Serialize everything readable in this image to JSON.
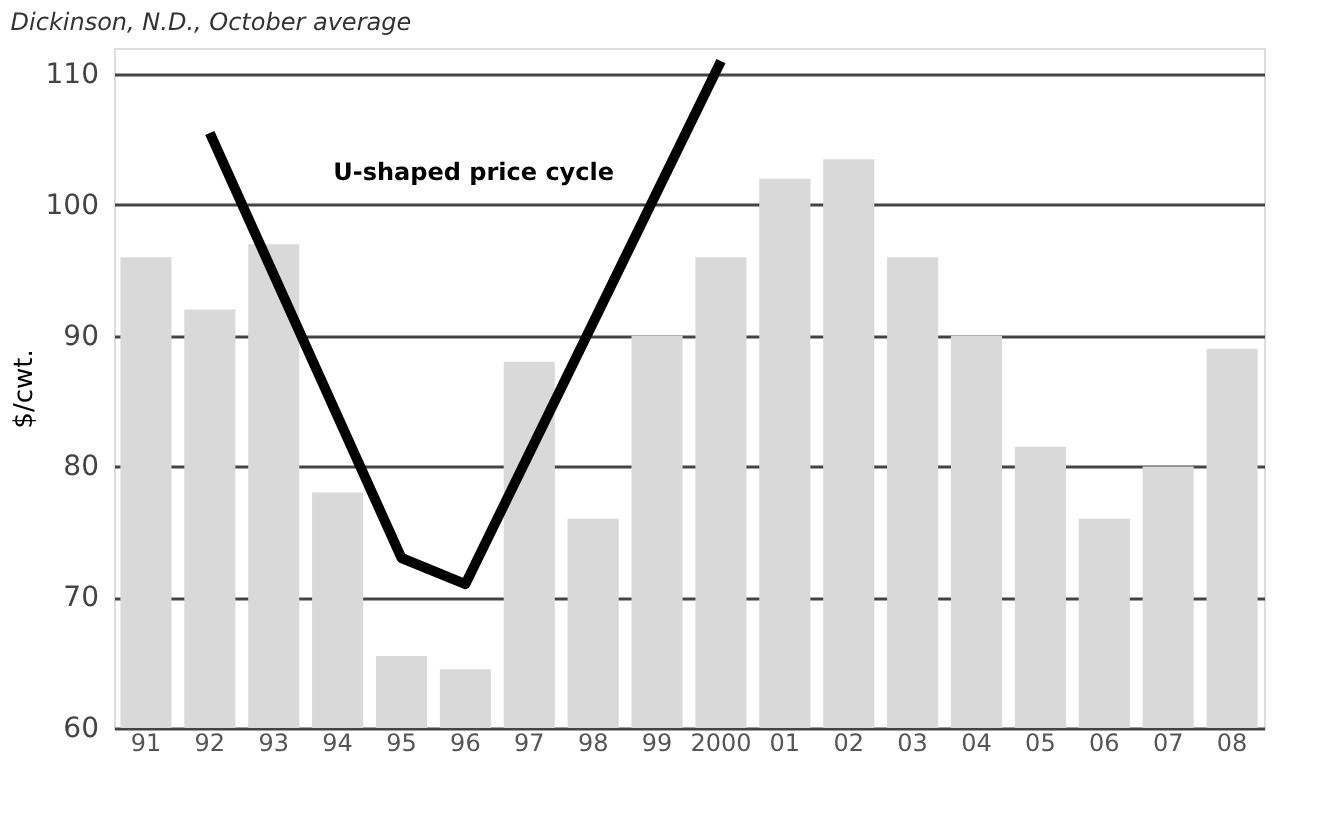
{
  "chart_data": {
    "type": "bar",
    "subtitle": "Dickinson, N.D., October average",
    "ylabel": "$/cwt.",
    "categories": [
      "91",
      "92",
      "93",
      "94",
      "95",
      "96",
      "97",
      "98",
      "99",
      "2000",
      "01",
      "02",
      "03",
      "04",
      "05",
      "06",
      "07",
      "08"
    ],
    "series": [
      {
        "color": "#d9d9d9",
        "values": [
          96,
          92,
          97,
          78,
          65.5,
          64.5,
          88,
          76,
          90,
          96,
          102,
          103.5,
          96,
          90,
          81.5,
          76,
          80,
          89
        ]
      },
      {
        "type": "line",
        "color": "#000000",
        "values": [
          null,
          105.5,
          null,
          null,
          73,
          71,
          null,
          null,
          null,
          111,
          null,
          null,
          null,
          null,
          null,
          null,
          null,
          null
        ]
      }
    ],
    "annotations": [
      "U-shaped price cycle"
    ],
    "ylim": [
      60,
      112
    ],
    "yticks": [
      60,
      70,
      80,
      90,
      100,
      110
    ],
    "grid": "y"
  }
}
